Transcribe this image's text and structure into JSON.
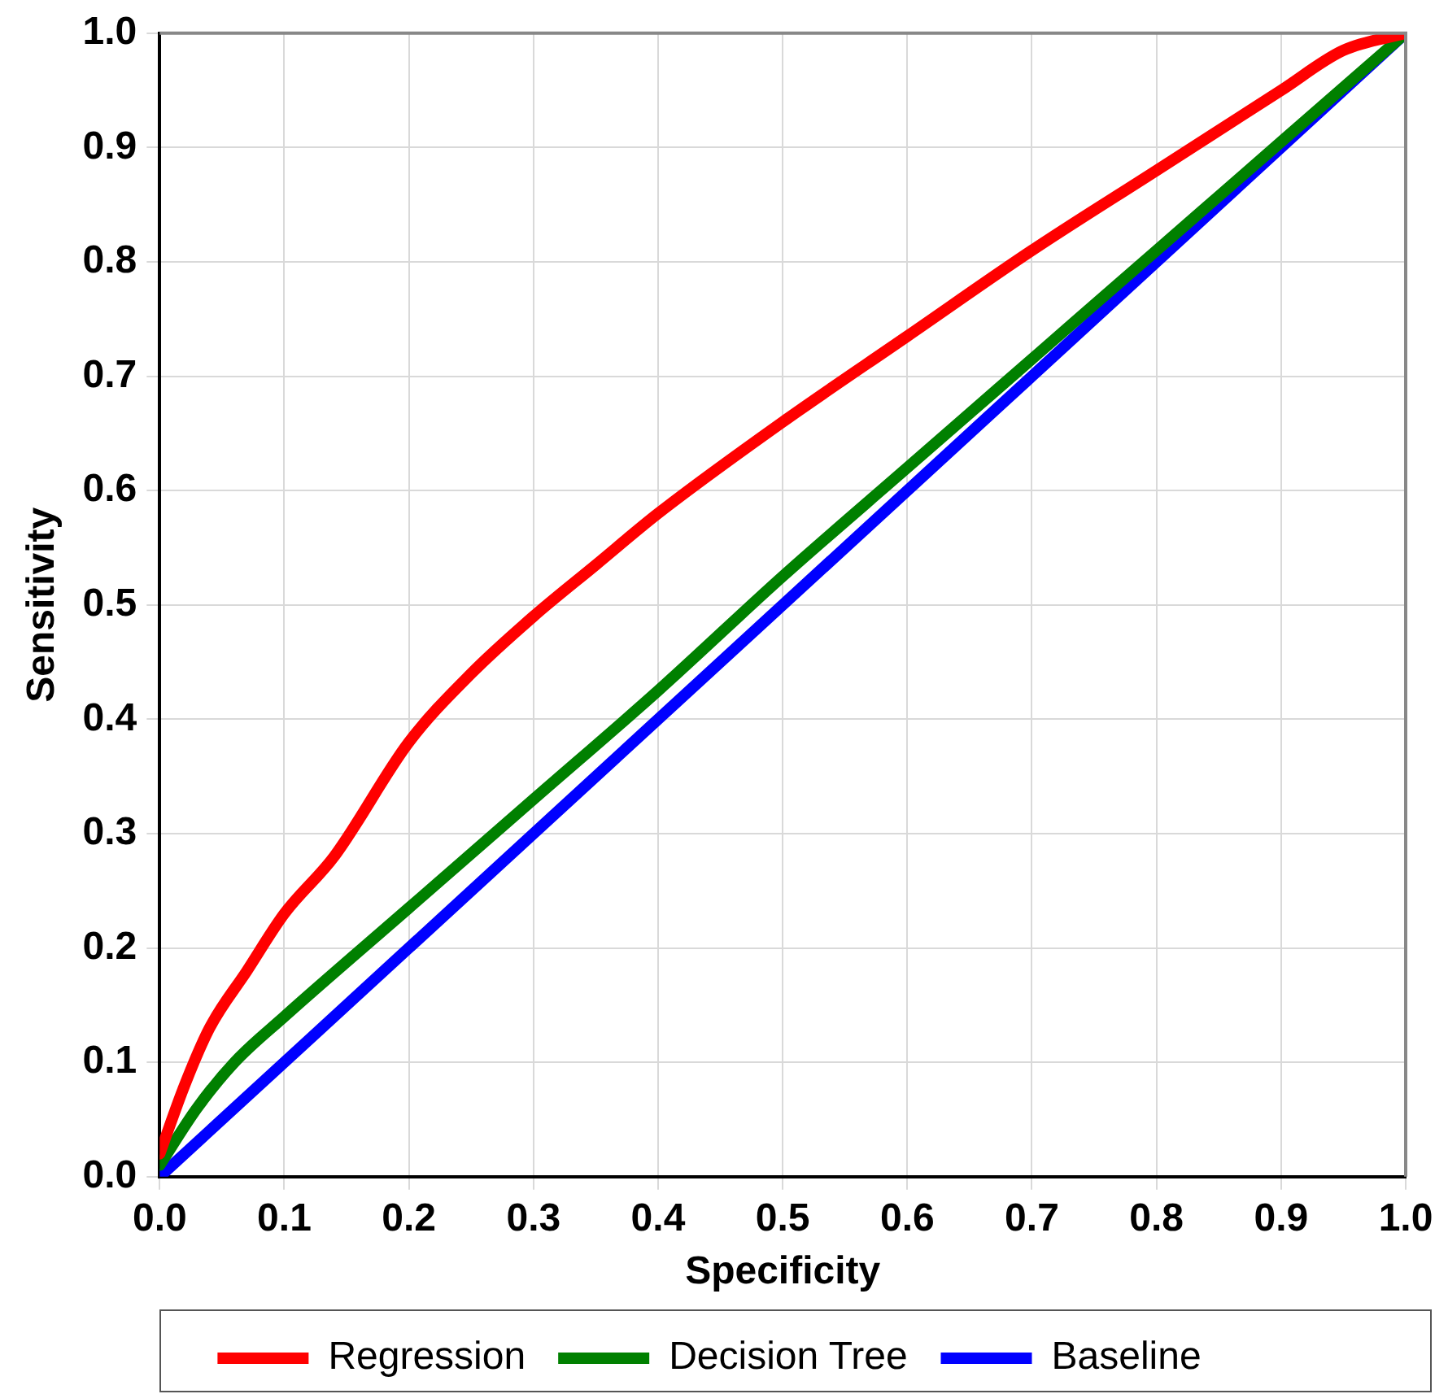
{
  "chart_data": {
    "type": "line",
    "xlabel": "Specificity",
    "ylabel": "Sensitivity",
    "xlim": [
      0,
      1
    ],
    "ylim": [
      0,
      1
    ],
    "xticks": [
      {
        "value": 0,
        "label": "0.0"
      },
      {
        "value": 0.1,
        "label": "0.1"
      },
      {
        "value": 0.2,
        "label": "0.2"
      },
      {
        "value": 0.3,
        "label": "0.3"
      },
      {
        "value": 0.4,
        "label": "0.4"
      },
      {
        "value": 0.5,
        "label": "0.5"
      },
      {
        "value": 0.6,
        "label": "0.6"
      },
      {
        "value": 0.7,
        "label": "0.7"
      },
      {
        "value": 0.8,
        "label": "0.8"
      },
      {
        "value": 0.9,
        "label": "0.9"
      },
      {
        "value": 1,
        "label": "1.0"
      }
    ],
    "yticks": [
      {
        "value": 0,
        "label": "0.0"
      },
      {
        "value": 0.1,
        "label": "0.1"
      },
      {
        "value": 0.2,
        "label": "0.2"
      },
      {
        "value": 0.3,
        "label": "0.3"
      },
      {
        "value": 0.4,
        "label": "0.4"
      },
      {
        "value": 0.5,
        "label": "0.5"
      },
      {
        "value": 0.6,
        "label": "0.6"
      },
      {
        "value": 0.7,
        "label": "0.7"
      },
      {
        "value": 0.8,
        "label": "0.8"
      },
      {
        "value": 0.9,
        "label": "0.9"
      },
      {
        "value": 1,
        "label": "1.0"
      }
    ],
    "grid": true,
    "legend": "bottom",
    "marker": "none",
    "line_style": "solid",
    "series": [
      {
        "name": "Regression",
        "color": "#ff0000",
        "x": [
          0,
          0.02,
          0.04,
          0.07,
          0.1,
          0.14,
          0.2,
          0.25,
          0.3,
          0.35,
          0.4,
          0.5,
          0.6,
          0.7,
          0.8,
          0.9,
          0.95,
          1
        ],
        "values": [
          0.02,
          0.08,
          0.13,
          0.18,
          0.23,
          0.28,
          0.38,
          0.44,
          0.49,
          0.535,
          0.58,
          0.66,
          0.735,
          0.81,
          0.88,
          0.95,
          0.985,
          1
        ]
      },
      {
        "name": "Decision Tree",
        "color": "#008000",
        "x": [
          0,
          0.03,
          0.06,
          0.1,
          0.2,
          0.3,
          0.4,
          0.5,
          0.6,
          0.7,
          0.8,
          0.9,
          1
        ],
        "values": [
          0.01,
          0.06,
          0.1,
          0.14,
          0.235,
          0.33,
          0.425,
          0.525,
          0.62,
          0.715,
          0.81,
          0.905,
          1
        ]
      },
      {
        "name": "Baseline",
        "color": "#0000ff",
        "x": [
          0,
          1
        ],
        "values": [
          0,
          1
        ]
      }
    ]
  }
}
